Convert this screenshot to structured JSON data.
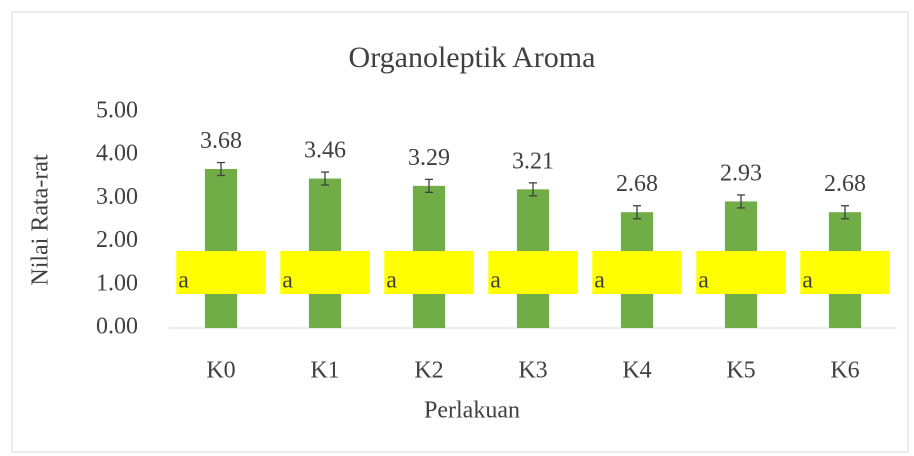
{
  "chart_data": {
    "type": "bar",
    "title": "Organoleptik Aroma",
    "x_label": "Perlakuan",
    "y_label": "Nilai Rata-rat",
    "categories": [
      "K0",
      "K1",
      "K2",
      "K3",
      "K4",
      "K5",
      "K6"
    ],
    "values": [
      3.68,
      3.46,
      3.29,
      3.21,
      2.68,
      2.93,
      2.68
    ],
    "errors": [
      0.15,
      0.15,
      0.15,
      0.15,
      0.15,
      0.15,
      0.15
    ],
    "color": "#70ad47",
    "group_labels": [
      "a",
      "a",
      "a",
      "a",
      "a",
      "a",
      "a"
    ],
    "group_label_color": "#ffff00",
    "ylim": [
      0,
      5
    ],
    "yticks": [
      {
        "value": 0,
        "label": "0.00"
      },
      {
        "value": 1,
        "label": "1.00"
      },
      {
        "value": 2,
        "label": "2.00"
      },
      {
        "value": 3,
        "label": "3.00"
      },
      {
        "value": 4,
        "label": "4.00"
      },
      {
        "value": 5,
        "label": "5.00"
      }
    ],
    "grid": false
  }
}
